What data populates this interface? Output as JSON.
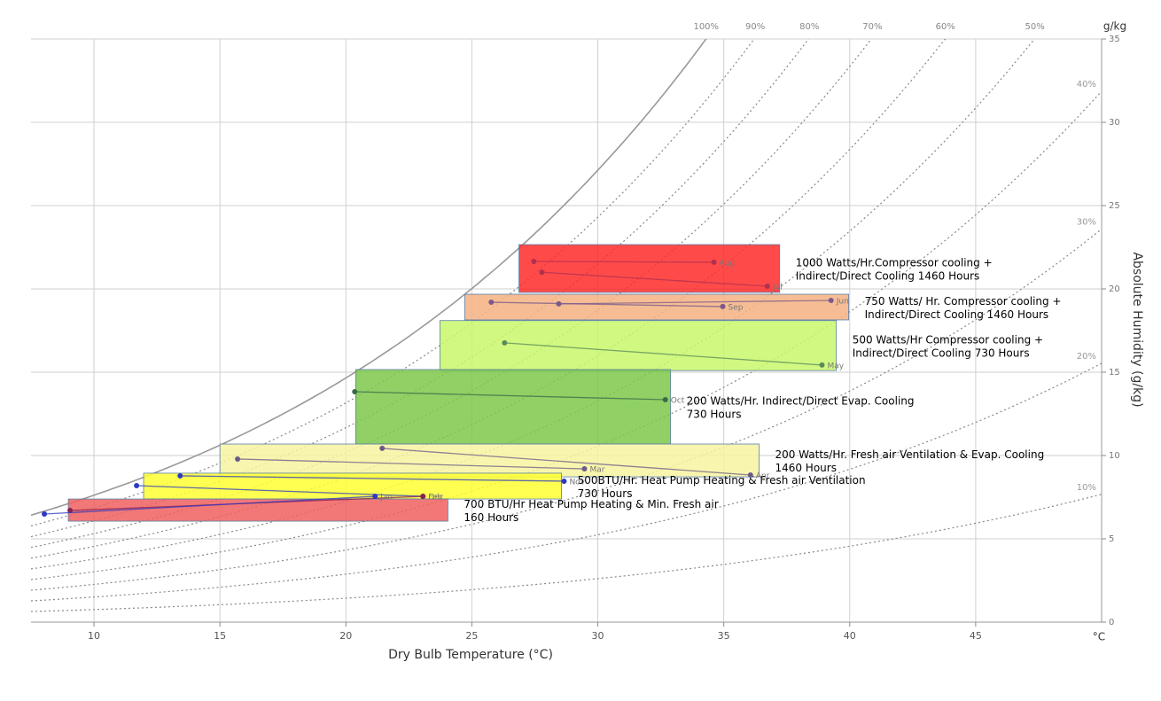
{
  "chart_data": {
    "type": "psychrometric",
    "x_label": "Dry Bulb Temperature (°C)",
    "y_label": "Absolute Humidity (g/kg)",
    "x_unit": "°C",
    "y_unit": "g/kg",
    "xlim": [
      7.5,
      50
    ],
    "ylim": [
      0,
      35
    ],
    "xticks": [
      10,
      15,
      20,
      25,
      30,
      35,
      40,
      45
    ],
    "yticks": [
      0,
      5,
      10,
      15,
      20,
      25,
      30,
      35
    ],
    "grid": true,
    "rh_curves": [
      {
        "value": 100,
        "label": "100%"
      },
      {
        "value": 90,
        "label": "90%"
      },
      {
        "value": 80,
        "label": "80%"
      },
      {
        "value": 70,
        "label": "70%"
      },
      {
        "value": 60,
        "label": "60%"
      },
      {
        "value": 50,
        "label": "50%"
      },
      {
        "value": 40,
        "label": "40%"
      },
      {
        "value": 30,
        "label": "30%"
      },
      {
        "value": 20,
        "label": "20%"
      },
      {
        "value": 10,
        "label": "10%"
      }
    ],
    "zones": [
      {
        "label": [
          "1000 Watts/Hr.Compressor cooling +",
          "Indirect/Direct  Cooling  1460 Hours"
        ],
        "x": [
          26.87,
          37.22
        ],
        "y": [
          19.79,
          22.66
        ],
        "color": "#ff2a2a"
      },
      {
        "label": [
          "750 Watts/ Hr. Compressor cooling   +",
          "Indirect/Direct  Cooling   1460 Hours"
        ],
        "x": [
          24.72,
          39.96
        ],
        "y": [
          18.14,
          19.68
        ],
        "color": "#f4b183"
      },
      {
        "label": [
          "500 Watts/Hr Compressor cooling +",
          "Indirect/Direct  Cooling   730 Hours"
        ],
        "x": [
          23.73,
          39.47
        ],
        "y": [
          15.1,
          18.1
        ],
        "color": "#c9f76b"
      },
      {
        "label": [
          "200 Watts/Hr. Indirect/Direct Evap. Cooling",
          "730 Hours"
        ],
        "x": [
          20.39,
          32.89
        ],
        "y": [
          10.69,
          15.16
        ],
        "color": "#7cc84a"
      },
      {
        "label": [
          "200 Watts/Hr. Fresh air Ventilation & Evap. Cooling",
          "1460 Hours"
        ],
        "x": [
          15.0,
          36.4
        ],
        "y": [
          8.72,
          10.69
        ],
        "color": "#f7f5a0"
      },
      {
        "label": [
          "500BTU/Hr. Heat Pump Heating & Fresh air Ventilation",
          "730 Hours"
        ],
        "x": [
          11.97,
          28.56
        ],
        "y": [
          7.39,
          8.94
        ],
        "color": "#ffff33"
      },
      {
        "label": [
          "700 BTU/Hr Heat Pump Heating & Min. Fresh air",
          "160 Hours"
        ],
        "x": [
          8.98,
          24.05
        ],
        "y": [
          6.06,
          7.39
        ],
        "color": "#f06060"
      }
    ],
    "months": [
      {
        "name": "Aug",
        "color": "#b03050",
        "x": [
          27.46,
          34.61
        ],
        "y": [
          21.65,
          21.6
        ]
      },
      {
        "name": "Jul",
        "color": "#b03050",
        "x": [
          27.78,
          36.73
        ],
        "y": [
          21.0,
          20.16
        ]
      },
      {
        "name": "Sep",
        "color": "#7a5a8a",
        "x": [
          25.77,
          34.96
        ],
        "y": [
          19.2,
          18.94
        ]
      },
      {
        "name": "Jun",
        "color": "#7a5a8a",
        "x": [
          28.45,
          39.26
        ],
        "y": [
          19.1,
          19.31
        ]
      },
      {
        "name": "May",
        "color": "#5a8a5a",
        "x": [
          26.3,
          38.9
        ],
        "y": [
          16.76,
          15.43
        ]
      },
      {
        "name": "Oct",
        "color": "#3a6a4a",
        "x": [
          20.35,
          32.68
        ],
        "y": [
          13.83,
          13.35
        ]
      },
      {
        "name": "Apr",
        "color": "#6a5a8a",
        "x": [
          21.44,
          36.06
        ],
        "y": [
          10.43,
          8.83
        ]
      },
      {
        "name": "Mar",
        "color": "#6a5a8a",
        "x": [
          15.7,
          29.47
        ],
        "y": [
          9.79,
          9.2
        ]
      },
      {
        "name": "Nov",
        "color": "#2a3ac0",
        "x": [
          13.42,
          28.66
        ],
        "y": [
          8.78,
          8.46
        ]
      },
      {
        "name": "Feb",
        "color": "#2a3ac0",
        "x": [
          11.69,
          23.06
        ],
        "y": [
          8.19,
          7.55
        ]
      },
      {
        "name": "Dec",
        "color": "#8a2050",
        "x": [
          9.05,
          23.06
        ],
        "y": [
          6.7,
          7.55
        ]
      },
      {
        "name": "Jan",
        "color": "#2a3ac0",
        "x": [
          8.03,
          21.16
        ],
        "y": [
          6.49,
          7.55
        ]
      }
    ]
  }
}
